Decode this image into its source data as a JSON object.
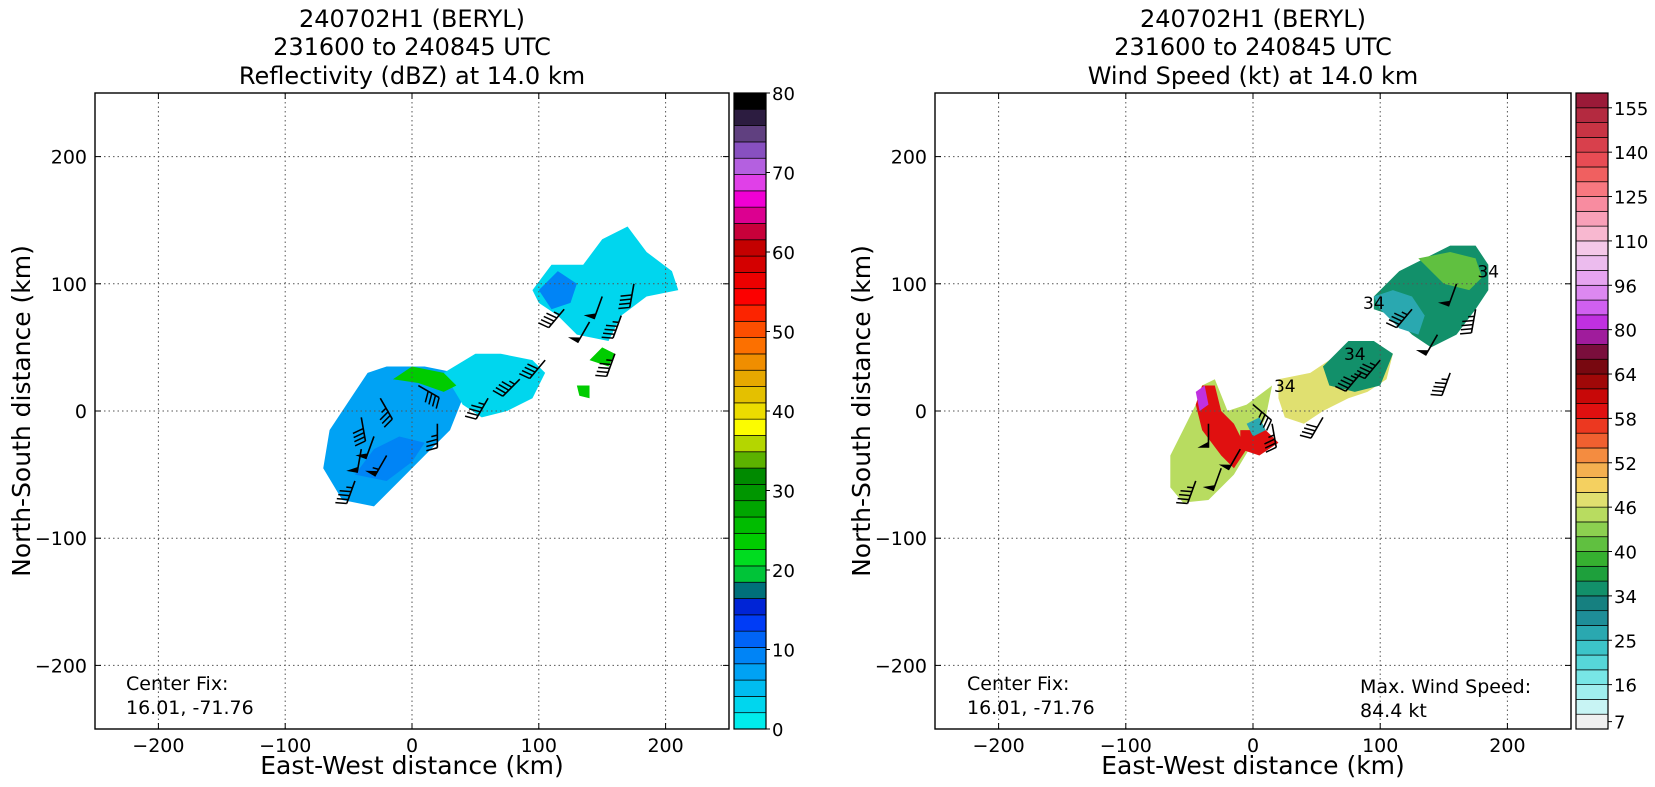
{
  "chart_data": [
    {
      "type": "heatmap",
      "title": [
        "240702H1 (BERYL)",
        "231600 to 240845 UTC",
        "Reflectivity (dBZ) at 14.0 km"
      ],
      "xlabel": "East-West distance (km)",
      "ylabel": "North-South distance (km)",
      "xlim": [
        -250,
        250
      ],
      "ylim": [
        -250,
        250
      ],
      "x_ticks": [
        -200,
        -100,
        0,
        100,
        200
      ],
      "y_ticks": [
        -200,
        -100,
        0,
        100,
        200
      ],
      "x_tick_labels": [
        "−200",
        "−100",
        "0",
        "100",
        "200"
      ],
      "y_tick_labels": [
        "−200",
        "−100",
        "0",
        "100",
        "200"
      ],
      "grid": true,
      "annotation": [
        "Center Fix:",
        "16.01, -71.76"
      ],
      "colorbar": {
        "vmin": 0,
        "vmax": 80,
        "ticks": [
          0,
          10,
          20,
          30,
          40,
          50,
          60,
          70,
          80
        ],
        "tick_labels": [
          "0",
          "10",
          "20",
          "30",
          "40",
          "50",
          "60",
          "70",
          "80"
        ],
        "colors": [
          "#00ecec",
          "#00d6ee",
          "#00bdf0",
          "#00a2f4",
          "#0084f6",
          "#0064f6",
          "#003cf6",
          "#0024d6",
          "#00707a",
          "#00c438",
          "#00dc20",
          "#00cc00",
          "#00bc00",
          "#00a600",
          "#009600",
          "#008a00",
          "#5cb200",
          "#b4d600",
          "#fcfc00",
          "#ecdc00",
          "#e4c000",
          "#e6a800",
          "#f08e00",
          "#fc7000",
          "#fc4e00",
          "#fc2400",
          "#fc0000",
          "#ec0000",
          "#d40000",
          "#c40000",
          "#c8003a",
          "#dc0090",
          "#f000d4",
          "#e040e8",
          "#b460e0",
          "#8850c0",
          "#604080",
          "#2c1c40",
          "#000000"
        ]
      },
      "regions": [
        {
          "points": [
            [
              -55,
              -70
            ],
            [
              -70,
              -45
            ],
            [
              -65,
              -15
            ],
            [
              -45,
              15
            ],
            [
              -35,
              30
            ],
            [
              -20,
              35
            ],
            [
              10,
              35
            ],
            [
              35,
              30
            ],
            [
              40,
              10
            ],
            [
              30,
              -15
            ],
            [
              10,
              -35
            ],
            [
              -10,
              -55
            ],
            [
              -30,
              -75
            ]
          ],
          "value": 8
        },
        {
          "points": [
            [
              25,
              30
            ],
            [
              50,
              45
            ],
            [
              70,
              45
            ],
            [
              95,
              40
            ],
            [
              105,
              30
            ],
            [
              95,
              10
            ],
            [
              75,
              0
            ],
            [
              55,
              -5
            ],
            [
              40,
              5
            ]
          ],
          "value": 4
        },
        {
          "points": [
            [
              95,
              95
            ],
            [
              110,
              115
            ],
            [
              135,
              115
            ],
            [
              150,
              135
            ],
            [
              170,
              145
            ],
            [
              185,
              125
            ],
            [
              205,
              110
            ],
            [
              210,
              95
            ],
            [
              185,
              90
            ],
            [
              165,
              75
            ],
            [
              155,
              55
            ],
            [
              130,
              60
            ],
            [
              115,
              75
            ],
            [
              100,
              85
            ]
          ],
          "value": 3
        },
        {
          "points": [
            [
              -15,
              25
            ],
            [
              0,
              35
            ],
            [
              25,
              30
            ],
            [
              35,
              20
            ],
            [
              25,
              15
            ],
            [
              5,
              22
            ]
          ],
          "value": 24
        },
        {
          "points": [
            [
              140,
              40
            ],
            [
              150,
              50
            ],
            [
              160,
              45
            ],
            [
              155,
              35
            ]
          ],
          "value": 24
        },
        {
          "points": [
            [
              130,
              20
            ],
            [
              140,
              20
            ],
            [
              140,
              10
            ],
            [
              132,
              12
            ]
          ],
          "value": 24
        },
        {
          "points": [
            [
              -45,
              -50
            ],
            [
              -20,
              -55
            ],
            [
              0,
              -40
            ],
            [
              10,
              -25
            ],
            [
              -10,
              -20
            ],
            [
              -30,
              -30
            ]
          ],
          "value": 10
        },
        {
          "points": [
            [
              100,
              95
            ],
            [
              115,
              110
            ],
            [
              130,
              100
            ],
            [
              125,
              85
            ],
            [
              110,
              80
            ]
          ],
          "value": 10
        }
      ],
      "wind_barbs": [
        {
          "x": -45,
          "y": -55,
          "dir": 200,
          "kt": 45
        },
        {
          "x": -40,
          "y": -30,
          "dir": 190,
          "kt": 50
        },
        {
          "x": -30,
          "y": -20,
          "dir": 200,
          "kt": 50
        },
        {
          "x": -20,
          "y": -35,
          "dir": 210,
          "kt": 55
        },
        {
          "x": -40,
          "y": -5,
          "dir": 170,
          "kt": 40
        },
        {
          "x": -25,
          "y": 10,
          "dir": 150,
          "kt": 35
        },
        {
          "x": 5,
          "y": 20,
          "dir": 120,
          "kt": 40
        },
        {
          "x": 20,
          "y": -10,
          "dir": 180,
          "kt": 35
        },
        {
          "x": 60,
          "y": 10,
          "dir": 210,
          "kt": 45
        },
        {
          "x": 85,
          "y": 25,
          "dir": 225,
          "kt": 45
        },
        {
          "x": 105,
          "y": 40,
          "dir": 220,
          "kt": 40
        },
        {
          "x": 120,
          "y": 80,
          "dir": 220,
          "kt": 45
        },
        {
          "x": 140,
          "y": 70,
          "dir": 210,
          "kt": 50
        },
        {
          "x": 150,
          "y": 90,
          "dir": 200,
          "kt": 50
        },
        {
          "x": 165,
          "y": 75,
          "dir": 200,
          "kt": 45
        },
        {
          "x": 175,
          "y": 100,
          "dir": 190,
          "kt": 40
        },
        {
          "x": 160,
          "y": 45,
          "dir": 200,
          "kt": 45
        }
      ]
    },
    {
      "type": "heatmap",
      "title": [
        "240702H1 (BERYL)",
        "231600 to 240845 UTC",
        "Wind Speed (kt) at 14.0 km"
      ],
      "xlabel": "East-West distance (km)",
      "ylabel": "North-South distance (km)",
      "xlim": [
        -250,
        250
      ],
      "ylim": [
        -250,
        250
      ],
      "x_ticks": [
        -200,
        -100,
        0,
        100,
        200
      ],
      "y_ticks": [
        -200,
        -100,
        0,
        100,
        200
      ],
      "x_tick_labels": [
        "−200",
        "−100",
        "0",
        "100",
        "200"
      ],
      "y_tick_labels": [
        "−200",
        "−100",
        "0",
        "100",
        "200"
      ],
      "grid": true,
      "annotation": [
        "Center Fix:",
        "16.01, -71.76"
      ],
      "annotation_right": [
        "Max. Wind Speed:",
        "84.4 kt"
      ],
      "contour_labels": [
        {
          "x": 25,
          "y": 15,
          "text": "34"
        },
        {
          "x": 95,
          "y": 80,
          "text": "34"
        },
        {
          "x": 80,
          "y": 40,
          "text": "34"
        },
        {
          "x": 185,
          "y": 105,
          "text": "34"
        }
      ],
      "colorbar": {
        "vmin": 4,
        "vmax": 160,
        "ticks": [
          7,
          16,
          25,
          34,
          40,
          46,
          52,
          58,
          64,
          80,
          96,
          110,
          125,
          140,
          155
        ],
        "tick_labels": [
          "7",
          "16",
          "25",
          "34",
          "40",
          "46",
          "52",
          "58",
          "64",
          "80",
          "96",
          "110",
          "125",
          "140",
          "155"
        ],
        "boundaries": [
          4,
          10,
          13,
          16,
          19,
          22,
          25,
          28,
          31,
          34,
          36,
          38,
          40,
          42,
          44,
          46,
          48,
          50,
          52,
          54,
          56,
          58,
          60,
          62,
          64,
          69,
          75,
          80,
          85,
          91,
          96,
          101,
          106,
          110,
          115,
          120,
          125,
          130,
          135,
          140,
          145,
          150,
          155,
          160
        ],
        "colors": [
          "#f0f0f0",
          "#c8f4f4",
          "#a0eeee",
          "#78e6e6",
          "#56d6d8",
          "#3cc4c8",
          "#2aa8b0",
          "#1e8e98",
          "#168080",
          "#12906a",
          "#1ea03c",
          "#36b030",
          "#60c040",
          "#8cd050",
          "#b8dc60",
          "#e0e070",
          "#f4d060",
          "#f4b050",
          "#f48c40",
          "#f06030",
          "#ec3820",
          "#e01010",
          "#c80808",
          "#a00808",
          "#780810",
          "#7a0e3c",
          "#a01c9c",
          "#c030e0",
          "#d060f0",
          "#dc88f0",
          "#e6a4f0",
          "#ecbcee",
          "#f4c8e8",
          "#f8b8d0",
          "#f8a0b8",
          "#f88ca0",
          "#f87880",
          "#f06060",
          "#e84c54",
          "#d8404c",
          "#c83444",
          "#b42a40",
          "#9a1a38"
        ]
      },
      "regions": [
        {
          "points": [
            [
              -65,
              -60
            ],
            [
              -65,
              -35
            ],
            [
              -55,
              -15
            ],
            [
              -45,
              5
            ],
            [
              -40,
              20
            ],
            [
              -30,
              25
            ],
            [
              -20,
              0
            ],
            [
              -5,
              5
            ],
            [
              15,
              20
            ],
            [
              10,
              -5
            ],
            [
              0,
              -25
            ],
            [
              -15,
              -50
            ],
            [
              -35,
              -70
            ],
            [
              -55,
              -72
            ]
          ],
          "value": 44
        },
        {
          "points": [
            [
              -40,
              -15
            ],
            [
              -45,
              5
            ],
            [
              -40,
              20
            ],
            [
              -30,
              20
            ],
            [
              -25,
              0
            ],
            [
              -15,
              -10
            ],
            [
              -5,
              -30
            ],
            [
              -15,
              -45
            ],
            [
              -25,
              -35
            ]
          ],
          "value": 58
        },
        {
          "points": [
            [
              -10,
              -15
            ],
            [
              10,
              -15
            ],
            [
              20,
              -25
            ],
            [
              5,
              -35
            ],
            [
              -10,
              -30
            ]
          ],
          "value": 58
        },
        {
          "points": [
            [
              20,
              25
            ],
            [
              45,
              30
            ],
            [
              60,
              40
            ],
            [
              75,
              50
            ],
            [
              95,
              50
            ],
            [
              110,
              45
            ],
            [
              105,
              25
            ],
            [
              90,
              15
            ],
            [
              75,
              10
            ],
            [
              55,
              0
            ],
            [
              40,
              -10
            ],
            [
              25,
              -5
            ],
            [
              20,
              10
            ]
          ],
          "value": 46
        },
        {
          "points": [
            [
              55,
              35
            ],
            [
              75,
              55
            ],
            [
              95,
              55
            ],
            [
              110,
              45
            ],
            [
              100,
              20
            ],
            [
              80,
              15
            ],
            [
              60,
              20
            ]
          ],
          "value": 34
        },
        {
          "points": [
            [
              95,
              90
            ],
            [
              115,
              110
            ],
            [
              135,
              120
            ],
            [
              155,
              130
            ],
            [
              175,
              130
            ],
            [
              185,
              115
            ],
            [
              185,
              95
            ],
            [
              175,
              80
            ],
            [
              160,
              60
            ],
            [
              140,
              50
            ],
            [
              125,
              60
            ],
            [
              110,
              75
            ],
            [
              95,
              80
            ]
          ],
          "value": 34
        },
        {
          "points": [
            [
              95,
              90
            ],
            [
              110,
              95
            ],
            [
              125,
              90
            ],
            [
              135,
              75
            ],
            [
              130,
              60
            ],
            [
              115,
              65
            ],
            [
              100,
              80
            ]
          ],
          "value": 25
        },
        {
          "points": [
            [
              130,
              120
            ],
            [
              155,
              125
            ],
            [
              175,
              120
            ],
            [
              180,
              105
            ],
            [
              170,
              95
            ],
            [
              150,
              100
            ],
            [
              140,
              110
            ]
          ],
          "value": 40
        },
        {
          "points": [
            [
              -5,
              -10
            ],
            [
              5,
              -5
            ],
            [
              10,
              -15
            ],
            [
              0,
              -20
            ]
          ],
          "value": 25
        },
        {
          "points": [
            [
              -45,
              15
            ],
            [
              -38,
              20
            ],
            [
              -35,
              5
            ],
            [
              -42,
              0
            ]
          ],
          "value": 80
        }
      ],
      "wind_barbs": [
        {
          "x": -45,
          "y": -55,
          "dir": 200,
          "kt": 45
        },
        {
          "x": -25,
          "y": -45,
          "dir": 200,
          "kt": 50
        },
        {
          "x": -35,
          "y": -10,
          "dir": 180,
          "kt": 50
        },
        {
          "x": -10,
          "y": -30,
          "dir": 210,
          "kt": 50
        },
        {
          "x": 0,
          "y": 5,
          "dir": 130,
          "kt": 35
        },
        {
          "x": 15,
          "y": -10,
          "dir": 170,
          "kt": 35
        },
        {
          "x": 55,
          "y": -5,
          "dir": 210,
          "kt": 40
        },
        {
          "x": 85,
          "y": 30,
          "dir": 220,
          "kt": 45
        },
        {
          "x": 100,
          "y": 40,
          "dir": 220,
          "kt": 45
        },
        {
          "x": 125,
          "y": 80,
          "dir": 220,
          "kt": 45
        },
        {
          "x": 145,
          "y": 60,
          "dir": 210,
          "kt": 50
        },
        {
          "x": 160,
          "y": 100,
          "dir": 200,
          "kt": 50
        },
        {
          "x": 175,
          "y": 80,
          "dir": 190,
          "kt": 45
        },
        {
          "x": 155,
          "y": 30,
          "dir": 200,
          "kt": 45
        }
      ]
    }
  ]
}
